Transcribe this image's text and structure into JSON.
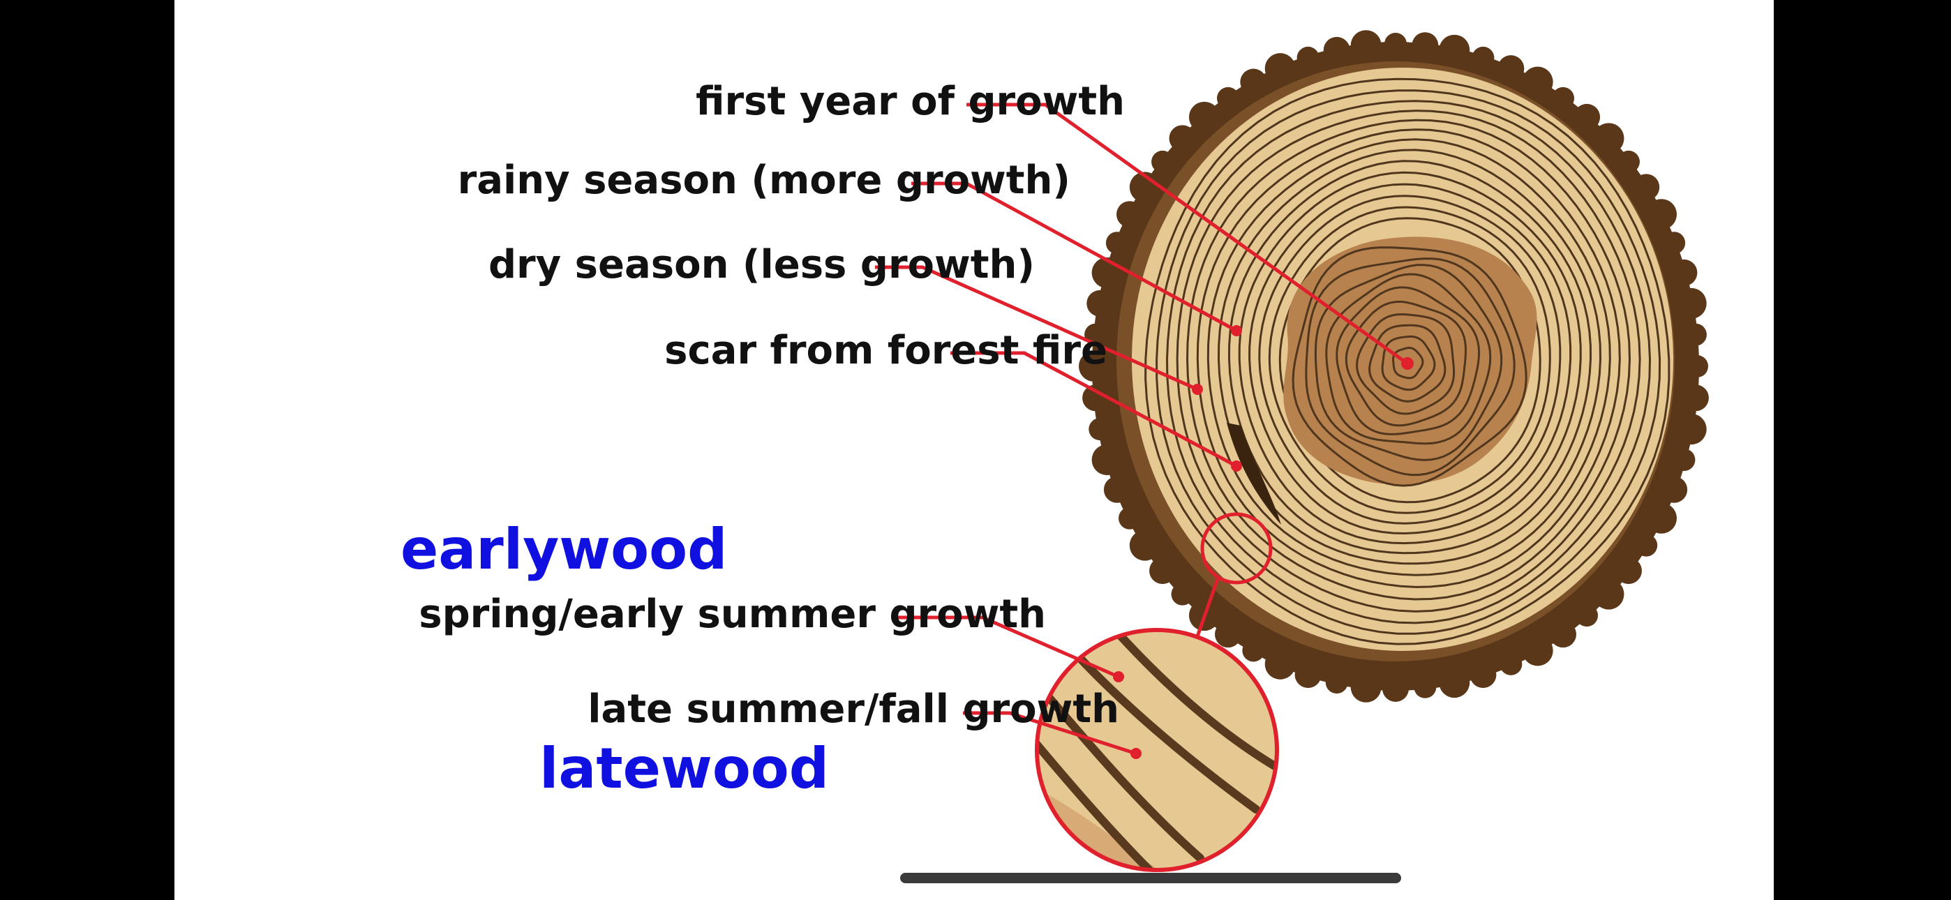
{
  "labels": {
    "first_year": "first year of growth",
    "rainy_season": "rainy season (more growth)",
    "dry_season": "dry season (less growth)",
    "fire_scar": "scar from forest fire",
    "spring_growth": "spring/early summer growth",
    "late_growth": "late summer/fall growth"
  },
  "terms": {
    "earlywood": "earlywood",
    "latewood": "latewood"
  },
  "colors": {
    "pointer": "#e0202c",
    "term": "#1010e0",
    "bark": "#5a3718",
    "outer_wood": "#e6c893",
    "heartwood": "#b8824f",
    "ring_line": "#4f361d"
  }
}
